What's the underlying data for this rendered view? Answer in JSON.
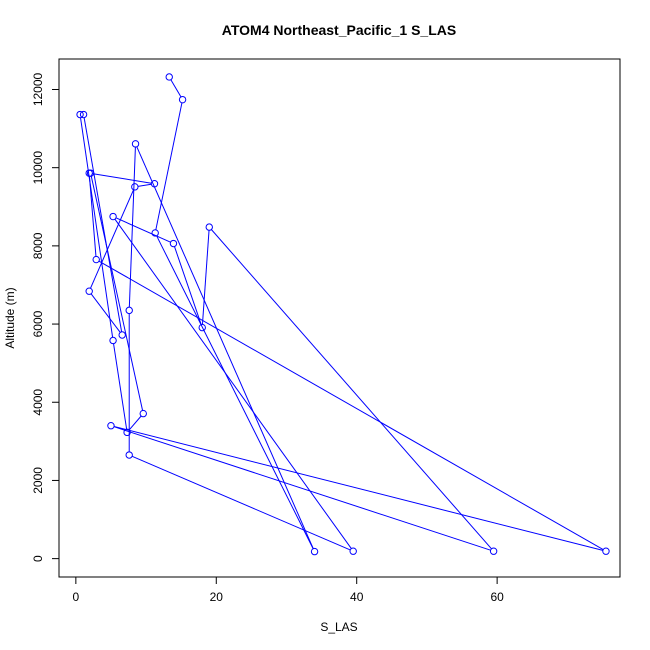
{
  "chart_data": {
    "type": "line",
    "title": "ATOM4 Northeast_Pacific_1 S_LAS",
    "xlabel": "S_LAS",
    "ylabel": "Altitude (m)",
    "xlim": [
      -2.4,
      77.5
    ],
    "ylim": [
      -470,
      12780
    ],
    "xticks": [
      0,
      20,
      40,
      60
    ],
    "yticks": [
      0,
      2000,
      4000,
      6000,
      8000,
      10000,
      12000
    ],
    "grid": false,
    "legend": "none",
    "series": [
      {
        "line_color": "#0000ff",
        "marker": "open-circle",
        "points": [
          {
            "x": 13.3,
            "y": 12320
          },
          {
            "x": 15.2,
            "y": 11740
          },
          {
            "x": 11.3,
            "y": 8330
          },
          {
            "x": 34.0,
            "y": 180
          },
          {
            "x": 8.5,
            "y": 10610
          },
          {
            "x": 7.6,
            "y": 6350
          },
          {
            "x": 7.6,
            "y": 2650
          },
          {
            "x": 39.5,
            "y": 190
          },
          {
            "x": 5.3,
            "y": 8750
          },
          {
            "x": 13.9,
            "y": 8060
          },
          {
            "x": 18.0,
            "y": 5910
          },
          {
            "x": 19.0,
            "y": 8480
          },
          {
            "x": 59.5,
            "y": 190
          },
          {
            "x": 5.0,
            "y": 3400
          },
          {
            "x": 75.5,
            "y": 190
          },
          {
            "x": 2.9,
            "y": 7650
          },
          {
            "x": 1.9,
            "y": 9860
          },
          {
            "x": 11.2,
            "y": 9590
          },
          {
            "x": 8.4,
            "y": 9510
          },
          {
            "x": 1.9,
            "y": 6840
          },
          {
            "x": 6.6,
            "y": 5720
          },
          {
            "x": 1.1,
            "y": 11360
          },
          {
            "x": 0.6,
            "y": 11360
          },
          {
            "x": 5.3,
            "y": 5580
          },
          {
            "x": 7.3,
            "y": 3230
          },
          {
            "x": 9.6,
            "y": 3710
          },
          {
            "x": 2.1,
            "y": 9860
          }
        ]
      }
    ]
  }
}
